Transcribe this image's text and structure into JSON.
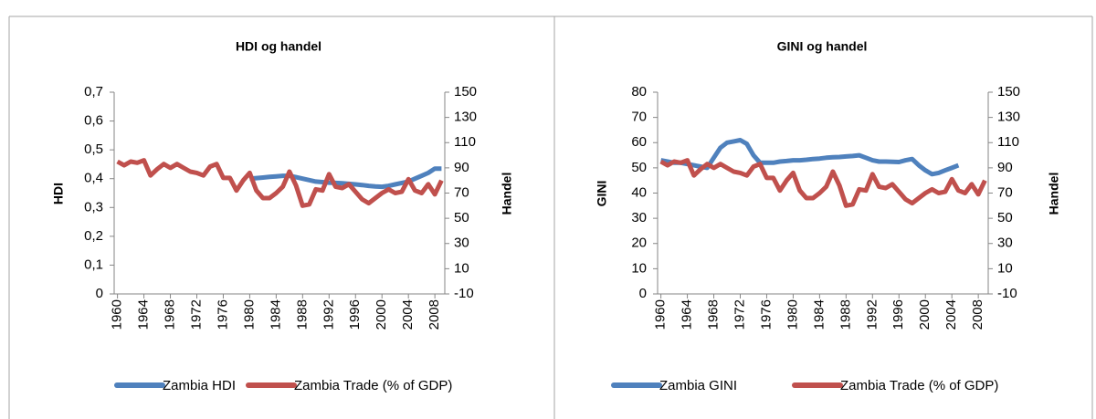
{
  "chart_data": [
    {
      "type": "line",
      "title": "HDI og handel",
      "y_label": "HDI",
      "y2_label": "Handel",
      "legend": "bottom",
      "x": [
        1960,
        1961,
        1962,
        1963,
        1964,
        1965,
        1966,
        1967,
        1968,
        1969,
        1970,
        1971,
        1972,
        1973,
        1974,
        1975,
        1976,
        1977,
        1978,
        1979,
        1980,
        1981,
        1982,
        1983,
        1984,
        1985,
        1986,
        1987,
        1988,
        1989,
        1990,
        1991,
        1992,
        1993,
        1994,
        1995,
        1996,
        1997,
        1998,
        1999,
        2000,
        2001,
        2002,
        2003,
        2004,
        2005,
        2006,
        2007,
        2008,
        2009
      ],
      "xlim": [
        1959.5,
        2009.5
      ],
      "xticks": [
        1960,
        1964,
        1968,
        1972,
        1976,
        1980,
        1984,
        1988,
        1992,
        1996,
        2000,
        2004,
        2008
      ],
      "ylim": [
        0,
        0.7
      ],
      "yticks": [
        0,
        {
          "value": 0.1,
          "label": "0,1"
        },
        {
          "value": 0.2,
          "label": "0,2"
        },
        {
          "value": 0.3,
          "label": "0,3"
        },
        {
          "value": 0.4,
          "label": "0,4"
        },
        {
          "value": 0.5,
          "label": "0,5"
        },
        {
          "value": 0.6,
          "label": "0,6"
        },
        {
          "value": 0.7,
          "label": "0,7"
        }
      ],
      "y2lim": [
        -10,
        150
      ],
      "y2ticks": [
        -10,
        10,
        30,
        50,
        70,
        90,
        110,
        130,
        150
      ],
      "series": [
        {
          "name": "Zambia HDI",
          "color": "#4f81bd",
          "values": [
            null,
            null,
            null,
            null,
            null,
            null,
            null,
            null,
            null,
            null,
            null,
            null,
            null,
            null,
            null,
            null,
            null,
            null,
            null,
            null,
            0.4,
            0.402,
            0.404,
            0.406,
            0.408,
            0.41,
            0.41,
            0.405,
            0.4,
            0.395,
            0.39,
            0.388,
            0.386,
            0.385,
            0.384,
            0.382,
            0.38,
            0.378,
            0.375,
            0.373,
            0.372,
            0.375,
            0.38,
            0.385,
            0.39,
            0.4,
            0.41,
            0.42,
            0.435,
            0.435
          ]
        },
        {
          "name": "Zambia Trade (% of GDP)",
          "color": "#c0504d",
          "axis": "y2",
          "values": [
            95,
            92,
            95,
            94,
            96,
            84,
            89,
            93,
            90,
            93,
            90,
            87,
            86,
            84,
            91,
            93,
            82,
            82,
            72,
            80,
            86,
            72,
            66,
            66,
            70,
            75,
            87,
            76,
            60,
            61,
            73,
            72,
            85,
            75,
            74,
            77,
            71,
            65,
            62,
            66,
            70,
            73,
            70,
            71,
            81,
            72,
            70,
            77,
            69,
            80
          ]
        }
      ]
    },
    {
      "type": "line",
      "title": "GINI og handel",
      "y_label": "GINI",
      "y2_label": "Handel",
      "legend": "bottom",
      "x": [
        1960,
        1961,
        1962,
        1963,
        1964,
        1965,
        1966,
        1967,
        1968,
        1969,
        1970,
        1971,
        1972,
        1973,
        1974,
        1975,
        1976,
        1977,
        1978,
        1979,
        1980,
        1981,
        1982,
        1983,
        1984,
        1985,
        1986,
        1987,
        1988,
        1989,
        1990,
        1991,
        1992,
        1993,
        1994,
        1995,
        1996,
        1997,
        1998,
        1999,
        2000,
        2001,
        2002,
        2003,
        2004,
        2005,
        2006,
        2007,
        2008,
        2009
      ],
      "xlim": [
        1959.5,
        2009.5
      ],
      "xticks": [
        1960,
        1964,
        1968,
        1972,
        1976,
        1980,
        1984,
        1988,
        1992,
        1996,
        2000,
        2004,
        2008
      ],
      "ylim": [
        0,
        80
      ],
      "yticks": [
        0,
        10,
        20,
        30,
        40,
        50,
        60,
        70,
        80
      ],
      "y2lim": [
        -10,
        150
      ],
      "y2ticks": [
        -10,
        10,
        30,
        50,
        70,
        90,
        110,
        130,
        150
      ],
      "series": [
        {
          "name": "Zambia GINI",
          "color": "#4f81bd",
          "values": [
            53,
            52.5,
            52,
            52,
            51.5,
            51,
            50.5,
            50,
            54,
            58,
            60,
            60.5,
            61,
            59.5,
            55,
            52,
            52,
            52,
            52.5,
            52.7,
            53,
            53,
            53.2,
            53.5,
            53.7,
            54,
            54.2,
            54.3,
            54.5,
            54.7,
            55,
            54,
            53,
            52.5,
            52.5,
            52.4,
            52.3,
            53,
            53.5,
            51,
            49,
            47.5,
            48,
            49,
            50,
            51,
            null,
            null,
            null,
            null
          ]
        },
        {
          "name": "Zambia Trade (% of GDP)",
          "color": "#c0504d",
          "axis": "y2",
          "values": [
            95,
            92,
            95,
            94,
            96,
            84,
            89,
            93,
            90,
            93,
            90,
            87,
            86,
            84,
            91,
            93,
            82,
            82,
            72,
            80,
            86,
            72,
            66,
            66,
            70,
            75,
            87,
            76,
            60,
            61,
            73,
            72,
            85,
            75,
            74,
            77,
            71,
            65,
            62,
            66,
            70,
            73,
            70,
            71,
            81,
            72,
            70,
            77,
            69,
            80
          ]
        }
      ]
    }
  ]
}
